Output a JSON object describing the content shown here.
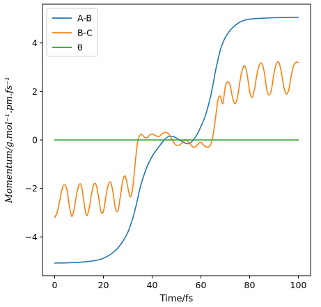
{
  "chart_data": {
    "type": "line",
    "title": "",
    "xlabel": "Time/fs",
    "ylabel": "Momentum/g.mol⁻¹.pm.fs⁻¹",
    "xlim": [
      -5,
      105
    ],
    "ylim": [
      -5.6,
      5.6
    ],
    "xticks": [
      0,
      20,
      40,
      60,
      80,
      100
    ],
    "yticks": [
      -4,
      -2,
      0,
      2,
      4
    ],
    "ytick_labels": [
      "−4",
      "−2",
      "0",
      "2",
      "4"
    ],
    "grid": false,
    "legend_position": "top-left",
    "series": [
      {
        "name": "A-B",
        "color": "#1f77b4",
        "x": [
          0,
          5,
          10,
          15,
          18,
          20,
          22,
          24,
          26,
          28,
          30,
          31,
          32,
          33,
          34,
          35,
          36,
          37,
          38,
          40,
          42,
          44,
          46,
          48,
          50,
          52,
          54,
          55,
          56,
          58,
          60,
          62,
          64,
          65,
          66,
          67,
          68,
          69,
          70,
          72,
          74,
          76,
          78,
          80,
          85,
          90,
          95,
          100
        ],
        "y": [
          -5.08,
          -5.07,
          -5.05,
          -5.0,
          -4.95,
          -4.88,
          -4.78,
          -4.64,
          -4.45,
          -4.18,
          -3.82,
          -3.55,
          -3.25,
          -2.88,
          -2.45,
          -2.0,
          -1.65,
          -1.35,
          -1.08,
          -0.68,
          -0.38,
          -0.12,
          0.1,
          0.15,
          0.08,
          -0.05,
          -0.15,
          -0.15,
          -0.1,
          0.15,
          0.55,
          1.05,
          1.8,
          2.3,
          2.85,
          3.3,
          3.72,
          4.0,
          4.22,
          4.52,
          4.72,
          4.86,
          4.94,
          4.98,
          5.02,
          5.04,
          5.05,
          5.06
        ]
      },
      {
        "name": "B-C",
        "color": "#ff7f0e",
        "x": [
          0,
          1,
          2,
          3,
          4,
          5,
          6,
          7,
          8,
          9,
          10,
          11,
          12,
          13,
          14,
          15,
          16,
          17,
          18,
          19,
          20,
          21,
          22,
          23,
          24,
          25,
          26,
          27,
          28,
          29,
          30,
          31,
          32,
          33,
          34,
          35,
          36,
          37,
          38,
          39,
          40,
          41,
          42,
          43,
          44,
          45,
          46,
          47,
          48,
          49,
          50,
          51,
          52,
          53,
          54,
          55,
          56,
          57,
          58,
          59,
          60,
          61,
          62,
          63,
          64,
          65,
          66,
          67,
          68,
          69,
          70,
          71,
          72,
          73,
          74,
          75,
          76,
          77,
          78,
          79,
          80,
          81,
          82,
          83,
          84,
          85,
          86,
          87,
          88,
          89,
          90,
          91,
          92,
          93,
          94,
          95,
          96,
          97,
          98,
          99,
          100
        ],
        "y": [
          -3.2,
          -3.0,
          -2.55,
          -2.05,
          -1.85,
          -2.05,
          -2.7,
          -3.15,
          -2.85,
          -2.25,
          -1.85,
          -1.9,
          -2.55,
          -3.1,
          -2.9,
          -2.3,
          -1.85,
          -1.85,
          -2.35,
          -2.95,
          -2.95,
          -2.35,
          -1.85,
          -1.75,
          -2.2,
          -2.85,
          -2.9,
          -2.3,
          -1.65,
          -1.5,
          -1.95,
          -2.35,
          -2.0,
          -1.0,
          -0.1,
          0.2,
          0.2,
          0.1,
          0.1,
          0.2,
          0.25,
          0.2,
          0.15,
          0.15,
          0.25,
          0.3,
          0.3,
          0.22,
          0.05,
          -0.12,
          -0.22,
          -0.22,
          -0.15,
          -0.05,
          0.0,
          -0.1,
          -0.22,
          -0.3,
          -0.27,
          -0.15,
          -0.1,
          -0.2,
          -0.28,
          -0.3,
          -0.2,
          0.2,
          0.9,
          1.65,
          1.8,
          1.5,
          2.2,
          2.4,
          2.25,
          1.75,
          1.5,
          1.75,
          2.4,
          2.9,
          3.05,
          2.7,
          2.0,
          1.75,
          2.1,
          2.7,
          3.1,
          3.15,
          2.8,
          2.1,
          1.85,
          2.1,
          2.75,
          3.15,
          3.2,
          2.8,
          2.2,
          1.9,
          2.05,
          2.6,
          3.05,
          3.2,
          3.2
        ]
      },
      {
        "name": "θ",
        "color": "#2ca02c",
        "x": [
          0,
          100
        ],
        "y": [
          0.0,
          0.0
        ]
      }
    ]
  }
}
